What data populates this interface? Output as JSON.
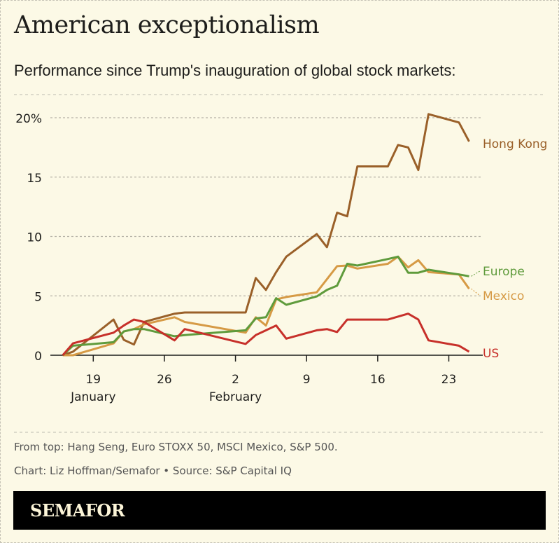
{
  "title": "American exceptionalism",
  "subtitle": "Performance since Trump's inauguration of global stock markets:",
  "footnote": "From top: Hang Seng, Euro STOXX 50, MSCI Mexico, S&P 500.",
  "credit": "Chart: Liz Hoffman/Semafor • Source: S&P Capital IQ",
  "brand": "SEMAFOR",
  "chart_data": {
    "type": "line",
    "title": "",
    "xlabel": "",
    "ylabel": "",
    "ylim": [
      0,
      20
    ],
    "y_ticks": [
      0,
      5,
      10,
      15,
      20
    ],
    "y_tick_labels": [
      "0",
      "5",
      "10",
      "15",
      "20%"
    ],
    "x_ticks": [
      "2025-01-19",
      "2025-01-26",
      "2025-02-02",
      "2025-02-09",
      "2025-02-16",
      "2025-02-23"
    ],
    "x_tick_labels": [
      "19",
      "26",
      "2",
      "9",
      "16",
      "23"
    ],
    "month_labels": [
      {
        "date": "2025-01-19",
        "label": "January"
      },
      {
        "date": "2025-02-02",
        "label": "February"
      }
    ],
    "grid": "horizontal dashed",
    "legend": "direct labels at right end of lines",
    "series": [
      {
        "name": "Hong Kong",
        "color": "#9a6029",
        "x": [
          "2025-01-16",
          "2025-01-17",
          "2025-01-21",
          "2025-01-22",
          "2025-01-23",
          "2025-01-24",
          "2025-01-27",
          "2025-01-28",
          "2025-02-03",
          "2025-02-04",
          "2025-02-05",
          "2025-02-06",
          "2025-02-07",
          "2025-02-10",
          "2025-02-11",
          "2025-02-12",
          "2025-02-13",
          "2025-02-14",
          "2025-02-17",
          "2025-02-18",
          "2025-02-19",
          "2025-02-20",
          "2025-02-21",
          "2025-02-24",
          "2025-02-25"
        ],
        "values": [
          0,
          0.3,
          3.0,
          1.3,
          0.9,
          2.8,
          3.5,
          3.6,
          3.6,
          6.5,
          5.5,
          7.0,
          8.3,
          10.2,
          9.1,
          12.0,
          11.7,
          15.9,
          15.9,
          17.7,
          17.5,
          15.6,
          20.3,
          19.6,
          18.0
        ]
      },
      {
        "name": "Europe",
        "color": "#5f9b3c",
        "x": [
          "2025-01-16",
          "2025-01-17",
          "2025-01-21",
          "2025-01-22",
          "2025-01-23",
          "2025-01-24",
          "2025-01-27",
          "2025-01-28",
          "2025-02-03",
          "2025-02-04",
          "2025-02-05",
          "2025-02-06",
          "2025-02-07",
          "2025-02-10",
          "2025-02-11",
          "2025-02-12",
          "2025-02-13",
          "2025-02-14",
          "2025-02-17",
          "2025-02-18",
          "2025-02-19",
          "2025-02-20",
          "2025-02-21",
          "2025-02-24",
          "2025-02-25"
        ],
        "values": [
          0,
          0.8,
          1.1,
          2.0,
          2.2,
          2.2,
          1.6,
          1.7,
          2.1,
          3.1,
          3.2,
          4.8,
          4.25,
          4.95,
          5.5,
          5.85,
          7.7,
          7.55,
          8.1,
          8.3,
          6.95,
          6.95,
          7.2,
          6.8,
          6.65
        ]
      },
      {
        "name": "Mexico",
        "color": "#d69a45",
        "x": [
          "2025-01-16",
          "2025-01-17",
          "2025-01-21",
          "2025-01-22",
          "2025-01-23",
          "2025-01-24",
          "2025-01-27",
          "2025-01-28",
          "2025-02-03",
          "2025-02-04",
          "2025-02-05",
          "2025-02-06",
          "2025-02-07",
          "2025-02-10",
          "2025-02-12",
          "2025-02-13",
          "2025-02-14",
          "2025-02-17",
          "2025-02-18",
          "2025-02-19",
          "2025-02-20",
          "2025-02-21",
          "2025-02-24",
          "2025-02-25"
        ],
        "values": [
          0,
          0,
          1.0,
          2.0,
          2.2,
          2.6,
          3.2,
          2.8,
          1.9,
          3.2,
          2.5,
          4.7,
          4.9,
          5.3,
          7.5,
          7.55,
          7.3,
          7.7,
          8.3,
          7.4,
          8.0,
          7.0,
          6.8,
          5.6
        ]
      },
      {
        "name": "US",
        "color": "#c7302a",
        "x": [
          "2025-01-16",
          "2025-01-17",
          "2025-01-21",
          "2025-01-22",
          "2025-01-23",
          "2025-01-24",
          "2025-01-27",
          "2025-01-28",
          "2025-02-03",
          "2025-02-04",
          "2025-02-06",
          "2025-02-07",
          "2025-02-10",
          "2025-02-11",
          "2025-02-12",
          "2025-02-13",
          "2025-02-14",
          "2025-02-17",
          "2025-02-19",
          "2025-02-20",
          "2025-02-21",
          "2025-02-24",
          "2025-02-25"
        ],
        "values": [
          0,
          1.0,
          1.9,
          2.5,
          3.0,
          2.8,
          1.25,
          2.2,
          0.95,
          1.7,
          2.5,
          1.4,
          2.1,
          2.2,
          1.95,
          3.0,
          3.0,
          3.0,
          3.5,
          3.0,
          1.25,
          0.8,
          0.3
        ]
      }
    ]
  }
}
